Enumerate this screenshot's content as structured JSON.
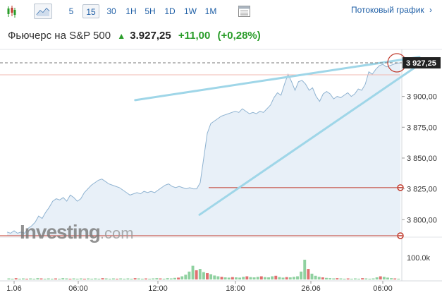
{
  "toolbar": {
    "intervals": [
      "5",
      "15",
      "30",
      "1H",
      "5H",
      "1D",
      "1W",
      "1M"
    ],
    "active_interval": "15",
    "stream_label": "Потоковый график",
    "stream_arrow": "›"
  },
  "header": {
    "name": "Фьючерс на S&P 500",
    "arrow": "▲",
    "price": "3.927,25",
    "change": "+11,00",
    "change_pct": "(+0,28%)"
  },
  "price_axis": {
    "labels": [
      "3 900,00",
      "3 875,00",
      "3 850,00",
      "3 825,00",
      "3 800,00"
    ],
    "current_label": "3 927,25"
  },
  "volume_axis": {
    "label": "100.0k"
  },
  "time_axis": {
    "labels": [
      "1.06",
      "06:00",
      "12:00",
      "18:00",
      "26.06",
      "06:00"
    ]
  },
  "logo": {
    "brand": "Investing",
    "suffix": ".com"
  },
  "colors": {
    "link": "#1f5fa6",
    "up": "#2a9d2a",
    "area_line": "#8fb3d1",
    "area_fill": "#e8f0f8",
    "trendline": "#9fd6e8",
    "hline": "#c0392b",
    "vol_up": "#8fd1a0",
    "vol_down": "#e07070"
  },
  "chart_data": {
    "type": "area",
    "price_range": [
      3787,
      3937
    ],
    "current_price": 3927.25,
    "x_labels": [
      "1.06",
      "06:00",
      "12:00",
      "18:00",
      "26.06",
      "06:00"
    ],
    "series": [
      {
        "values": [
          3790,
          3789,
          3791,
          3789,
          3790,
          3789,
          3793,
          3795,
          3798,
          3803,
          3801,
          3806,
          3810,
          3815,
          3817,
          3816,
          3818,
          3815,
          3820,
          3818,
          3815,
          3817,
          3822,
          3825,
          3828,
          3830,
          3832,
          3833,
          3831,
          3829,
          3828,
          3827,
          3826,
          3824,
          3822,
          3820,
          3821,
          3822,
          3821,
          3823,
          3822,
          3823,
          3822,
          3824,
          3826,
          3828,
          3829,
          3827,
          3826,
          3827,
          3826,
          3825,
          3826,
          3825,
          3825,
          3830,
          3850,
          3870,
          3878,
          3880,
          3882,
          3884,
          3885,
          3886,
          3887,
          3888,
          3887,
          3890,
          3888,
          3886,
          3887,
          3886,
          3888,
          3887,
          3890,
          3893,
          3899,
          3903,
          3901,
          3910,
          3918,
          3912,
          3905,
          3912,
          3913,
          3910,
          3905,
          3907,
          3900,
          3896,
          3902,
          3904,
          3902,
          3898,
          3900,
          3899,
          3901,
          3903,
          3900,
          3902,
          3906,
          3905,
          3910,
          3920,
          3918,
          3922,
          3925,
          3926,
          3924,
          3925,
          3926,
          3927,
          3927.25
        ]
      }
    ],
    "volume": [
      {
        "v": 4,
        "up": true
      },
      {
        "v": 3,
        "up": true
      },
      {
        "v": 5,
        "up": false
      },
      {
        "v": 3,
        "up": true
      },
      {
        "v": 4,
        "up": true
      },
      {
        "v": 3,
        "up": false
      },
      {
        "v": 4,
        "up": true
      },
      {
        "v": 3,
        "up": true
      },
      {
        "v": 5,
        "up": true
      },
      {
        "v": 4,
        "up": false
      },
      {
        "v": 3,
        "up": true
      },
      {
        "v": 4,
        "up": true
      },
      {
        "v": 3,
        "up": true
      },
      {
        "v": 4,
        "up": false
      },
      {
        "v": 3,
        "up": true
      },
      {
        "v": 5,
        "up": true
      },
      {
        "v": 4,
        "up": true
      },
      {
        "v": 3,
        "up": false
      },
      {
        "v": 4,
        "up": true
      },
      {
        "v": 3,
        "up": true
      },
      {
        "v": 4,
        "up": true
      },
      {
        "v": 3,
        "up": false
      },
      {
        "v": 4,
        "up": true
      },
      {
        "v": 3,
        "up": true
      },
      {
        "v": 4,
        "up": true
      },
      {
        "v": 3,
        "up": true
      },
      {
        "v": 5,
        "up": false
      },
      {
        "v": 4,
        "up": true
      },
      {
        "v": 3,
        "up": true
      },
      {
        "v": 4,
        "up": true
      },
      {
        "v": 3,
        "up": false
      },
      {
        "v": 4,
        "up": true
      },
      {
        "v": 3,
        "up": true
      },
      {
        "v": 4,
        "up": true
      },
      {
        "v": 3,
        "up": true
      },
      {
        "v": 5,
        "up": false
      },
      {
        "v": 4,
        "up": true
      },
      {
        "v": 3,
        "up": true
      },
      {
        "v": 4,
        "up": false
      },
      {
        "v": 3,
        "up": true
      },
      {
        "v": 4,
        "up": true
      },
      {
        "v": 5,
        "up": true
      },
      {
        "v": 4,
        "up": false
      },
      {
        "v": 3,
        "up": true
      },
      {
        "v": 5,
        "up": true
      },
      {
        "v": 4,
        "up": true
      },
      {
        "v": 6,
        "up": true
      },
      {
        "v": 7,
        "up": false
      },
      {
        "v": 12,
        "up": true
      },
      {
        "v": 18,
        "up": true
      },
      {
        "v": 30,
        "up": true
      },
      {
        "v": 52,
        "up": true
      },
      {
        "v": 35,
        "up": false
      },
      {
        "v": 40,
        "up": true
      },
      {
        "v": 28,
        "up": true
      },
      {
        "v": 24,
        "up": false
      },
      {
        "v": 20,
        "up": true
      },
      {
        "v": 15,
        "up": true
      },
      {
        "v": 12,
        "up": true
      },
      {
        "v": 10,
        "up": false
      },
      {
        "v": 8,
        "up": true
      },
      {
        "v": 7,
        "up": true
      },
      {
        "v": 9,
        "up": false
      },
      {
        "v": 8,
        "up": true
      },
      {
        "v": 7,
        "up": true
      },
      {
        "v": 10,
        "up": true
      },
      {
        "v": 12,
        "up": false
      },
      {
        "v": 9,
        "up": true
      },
      {
        "v": 8,
        "up": true
      },
      {
        "v": 10,
        "up": true
      },
      {
        "v": 12,
        "up": false
      },
      {
        "v": 9,
        "up": true
      },
      {
        "v": 8,
        "up": true
      },
      {
        "v": 12,
        "up": true
      },
      {
        "v": 14,
        "up": false
      },
      {
        "v": 9,
        "up": true
      },
      {
        "v": 7,
        "up": true
      },
      {
        "v": 9,
        "up": false
      },
      {
        "v": 8,
        "up": true
      },
      {
        "v": 10,
        "up": true
      },
      {
        "v": 12,
        "up": true
      },
      {
        "v": 30,
        "up": true
      },
      {
        "v": 75,
        "up": true
      },
      {
        "v": 40,
        "up": false
      },
      {
        "v": 22,
        "up": true
      },
      {
        "v": 14,
        "up": true
      },
      {
        "v": 10,
        "up": true
      },
      {
        "v": 8,
        "up": false
      },
      {
        "v": 6,
        "up": true
      },
      {
        "v": 5,
        "up": true
      },
      {
        "v": 4,
        "up": true
      },
      {
        "v": 5,
        "up": false
      },
      {
        "v": 4,
        "up": true
      },
      {
        "v": 3,
        "up": true
      },
      {
        "v": 4,
        "up": false
      },
      {
        "v": 3,
        "up": true
      },
      {
        "v": 4,
        "up": true
      },
      {
        "v": 3,
        "up": true
      },
      {
        "v": 5,
        "up": false
      },
      {
        "v": 4,
        "up": true
      },
      {
        "v": 3,
        "up": true
      },
      {
        "v": 4,
        "up": true
      },
      {
        "v": 8,
        "up": true
      },
      {
        "v": 12,
        "up": false
      },
      {
        "v": 10,
        "up": true
      },
      {
        "v": 7,
        "up": true
      },
      {
        "v": 5,
        "up": true
      },
      {
        "v": 4,
        "up": false
      },
      {
        "v": 3,
        "up": true
      }
    ],
    "volume_max": 150,
    "horizontal_lines": [
      3826,
      3787
    ],
    "trendlines": [
      {
        "x1": 0.41,
        "y1": 3897,
        "x2": 1.0,
        "y2": 3932
      },
      {
        "x1": 0.5,
        "y1": 3804,
        "x2": 1.0,
        "y2": 3926
      }
    ]
  }
}
